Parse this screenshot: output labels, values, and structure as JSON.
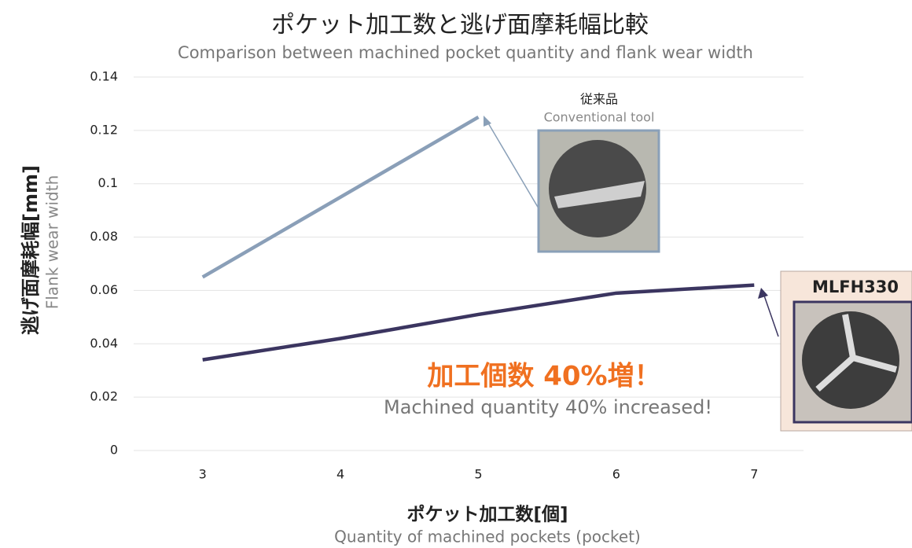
{
  "chart_data": {
    "type": "line",
    "title": "ポケット加工数と逃げ面摩耗幅比較",
    "subtitle": "Comparison between machined pocket quantity and flank wear width",
    "y_label": "逃げ面摩耗幅[mm]",
    "y_label_en": "Flank wear width",
    "x_label": "ポケット加工数[個]",
    "x_label_en": "Quantity of machined pockets (pocket)",
    "x": [
      3,
      4,
      5,
      6,
      7
    ],
    "xlim": [
      2.5,
      7.5
    ],
    "xticks": [
      3,
      4,
      5,
      6,
      7
    ],
    "ylim": [
      0,
      0.14
    ],
    "yticks": [
      0,
      0.02,
      0.04,
      0.06,
      0.08,
      0.1,
      0.12,
      0.14
    ],
    "grid": true,
    "series": [
      {
        "name": "Conventional tool",
        "color": "#8a9fb8",
        "values": [
          0.065,
          0.095,
          0.125,
          null,
          null
        ]
      },
      {
        "name": "MLFH330",
        "color": "#3b3560",
        "values": [
          0.034,
          0.042,
          0.051,
          0.059,
          0.062
        ]
      }
    ],
    "annotations": [
      "従来品",
      "加工個数 40%増！",
      "Machined quantity  40% increased!"
    ]
  }
}
